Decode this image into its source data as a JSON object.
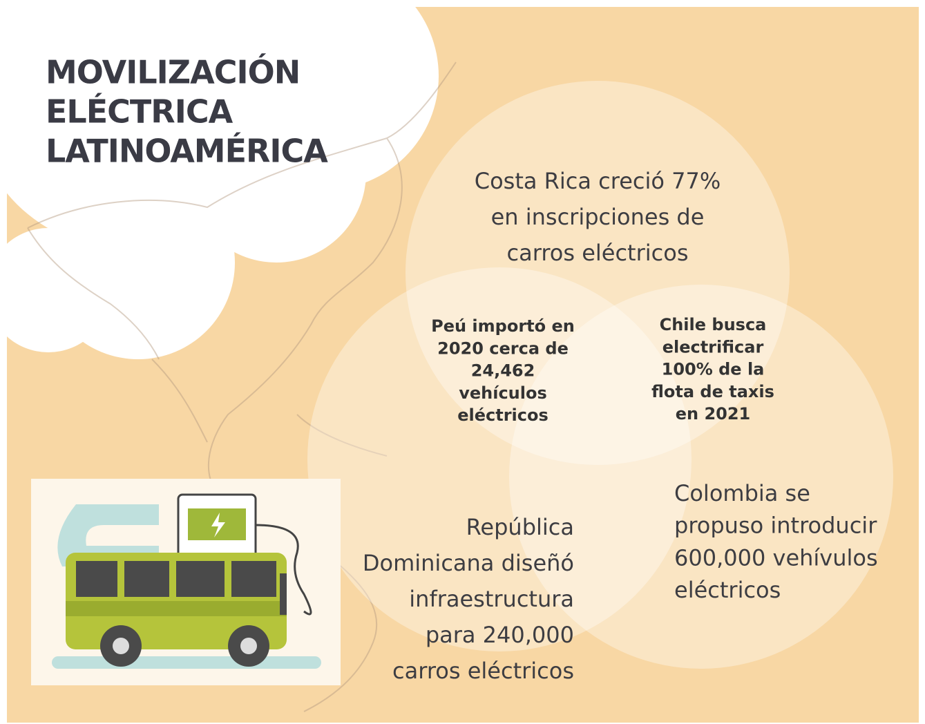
{
  "title": {
    "lines": [
      "MOVILIZACIÓN",
      "ELÉCTRICA",
      "LATINOAMÉRICA"
    ]
  },
  "facts": [
    {
      "lines": [
        "Costa Rica creció 77%",
        "en inscripciones de",
        "carros eléctricos"
      ]
    },
    {
      "lines": [
        "Peú importó en",
        "2020 cerca de",
        "24,462",
        "vehículos",
        "eléctricos"
      ]
    },
    {
      "lines": [
        "Chile busca",
        "electrificar",
        "100% de la",
        "flota de taxis",
        "en 2021"
      ]
    },
    {
      "lines": [
        "República",
        "Dominicana diseñó",
        "infraestructura",
        "para 240,000",
        "carros eléctricos"
      ]
    },
    {
      "lines": [
        "Colombia se",
        "propuso introducir",
        "600,000 vehívulos",
        "eléctricos"
      ]
    }
  ]
}
